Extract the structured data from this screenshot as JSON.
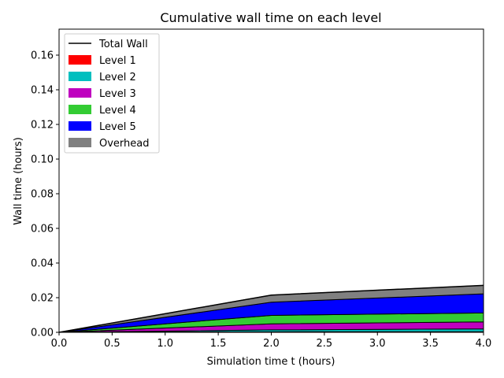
{
  "chart_data": {
    "type": "area",
    "title": "Cumulative wall time on each level",
    "xlabel": "Simulation time t (hours)",
    "ylabel": "Wall time (hours)",
    "xlim": [
      0.0,
      4.0
    ],
    "ylim": [
      0.0,
      0.175
    ],
    "xticks": [
      "0.0",
      "0.5",
      "1.0",
      "1.5",
      "2.0",
      "2.5",
      "3.0",
      "3.5",
      "4.0"
    ],
    "yticks": [
      "0.00",
      "0.02",
      "0.04",
      "0.06",
      "0.08",
      "0.10",
      "0.12",
      "0.14",
      "0.16"
    ],
    "grid": false,
    "legend_position": "upper-left",
    "x": [
      0.0,
      2.0,
      4.0
    ],
    "stacked": true,
    "series": [
      {
        "name": "Level 1",
        "color": "#ff0000",
        "values": [
          0.0,
          0.0003,
          0.0004
        ]
      },
      {
        "name": "Level 2",
        "color": "#00bfbf",
        "values": [
          0.0,
          0.0011,
          0.0016
        ]
      },
      {
        "name": "Level 3",
        "color": "#bf00bf",
        "values": [
          0.0,
          0.0035,
          0.004
        ]
      },
      {
        "name": "Level 4",
        "color": "#33cc33",
        "values": [
          0.0,
          0.0049,
          0.0052
        ]
      },
      {
        "name": "Level 5",
        "color": "#0000ff",
        "values": [
          0.0,
          0.0076,
          0.011
        ]
      },
      {
        "name": "Overhead",
        "color": "#808080",
        "values": [
          0.0,
          0.0041,
          0.0049
        ]
      }
    ],
    "total": {
      "name": "Total Wall",
      "color": "#000000",
      "values": [
        0.0,
        0.0215,
        0.0271
      ]
    }
  }
}
